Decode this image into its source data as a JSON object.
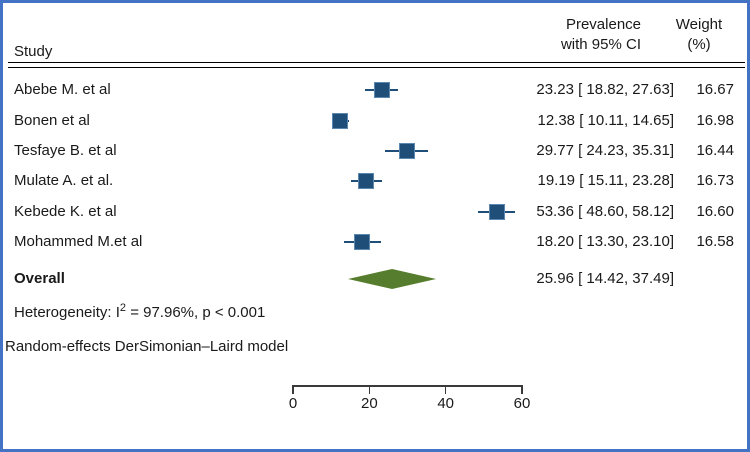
{
  "chart_data": {
    "type": "forest",
    "columns": {
      "study": "Study",
      "effect_line1": "Prevalence",
      "effect_line2": "with 95% CI",
      "weight_line1": "Weight",
      "weight_line2": "(%)"
    },
    "studies": [
      {
        "name": "Abebe M. et al",
        "est": 23.23,
        "lo": 18.82,
        "hi": 27.63,
        "ci_text": "23.23 [ 18.82, 27.63]",
        "weight": "16.67"
      },
      {
        "name": "Bonen et al",
        "est": 12.38,
        "lo": 10.11,
        "hi": 14.65,
        "ci_text": "12.38 [ 10.11, 14.65]",
        "weight": "16.98"
      },
      {
        "name": "Tesfaye B. et al",
        "est": 29.77,
        "lo": 24.23,
        "hi": 35.31,
        "ci_text": "29.77 [ 24.23, 35.31]",
        "weight": "16.44"
      },
      {
        "name": "Mulate A. et al.",
        "est": 19.19,
        "lo": 15.11,
        "hi": 23.28,
        "ci_text": "19.19 [ 15.11, 23.28]",
        "weight": "16.73"
      },
      {
        "name": "Kebede K. et al",
        "est": 53.36,
        "lo": 48.6,
        "hi": 58.12,
        "ci_text": "53.36 [ 48.60, 58.12]",
        "weight": "16.60"
      },
      {
        "name": "Mohammed M.et al",
        "est": 18.2,
        "lo": 13.3,
        "hi": 23.1,
        "ci_text": "18.20 [ 13.30, 23.10]",
        "weight": "16.58"
      }
    ],
    "overall": {
      "name": "Overall",
      "est": 25.96,
      "lo": 14.42,
      "hi": 37.49,
      "ci_text": "25.96 [ 14.42, 37.49]"
    },
    "heterogeneity": {
      "prefix": "Heterogeneity:  I",
      "sup": "2",
      "suffix": " = 97.96%, p < 0.001"
    },
    "model_note": "Random-effects DerSimonian–Laird model",
    "axis": {
      "min": 0,
      "max": 60,
      "ticks": [
        0,
        20,
        40,
        60
      ]
    },
    "colors": {
      "marker": "#1f4e79",
      "marker_edge": "#5c87ae",
      "diamond": "#567d2e",
      "frame": "#4472c4",
      "text": "#1a1a1a",
      "axis": "#3a3a3a"
    }
  }
}
